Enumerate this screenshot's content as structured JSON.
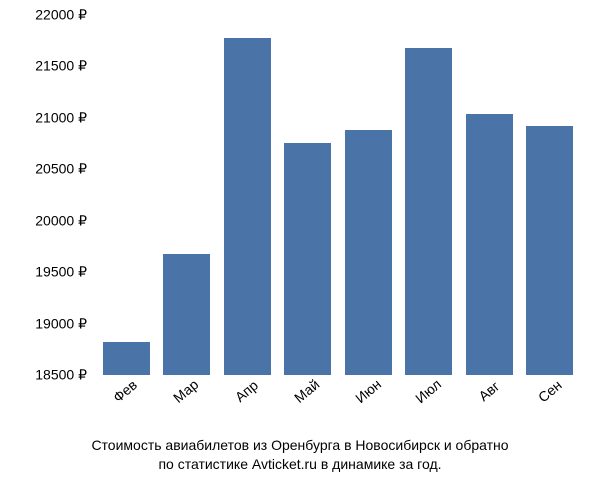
{
  "chart": {
    "type": "bar",
    "background_color": "#ffffff",
    "bar_color": "#4a74a8",
    "text_color": "#000000",
    "axis_fontsize": 14,
    "caption_fontsize": 14,
    "bar_width_ratio": 0.78,
    "x_rotation_deg": -40,
    "ylim": [
      18500,
      22000
    ],
    "ytick_step": 500,
    "y_suffix": " ₽",
    "yticks": [
      {
        "value": 18500,
        "label": "18500 ₽"
      },
      {
        "value": 19000,
        "label": "19000 ₽"
      },
      {
        "value": 19500,
        "label": "19500 ₽"
      },
      {
        "value": 20000,
        "label": "20000 ₽"
      },
      {
        "value": 20500,
        "label": "20500 ₽"
      },
      {
        "value": 21000,
        "label": "21000 ₽"
      },
      {
        "value": 21500,
        "label": "21500 ₽"
      },
      {
        "value": 22000,
        "label": "22000 ₽"
      }
    ],
    "categories": [
      "Фев",
      "Мар",
      "Апр",
      "Май",
      "Июн",
      "Июл",
      "Авг",
      "Сен"
    ],
    "values": [
      18820,
      19680,
      21780,
      20760,
      20880,
      21680,
      21040,
      20920
    ]
  },
  "caption": {
    "line1": "Стоимость авиабилетов из Оренбурга в Новосибирск и обратно",
    "line2": "по статистике Avticket.ru в динамике за год."
  }
}
